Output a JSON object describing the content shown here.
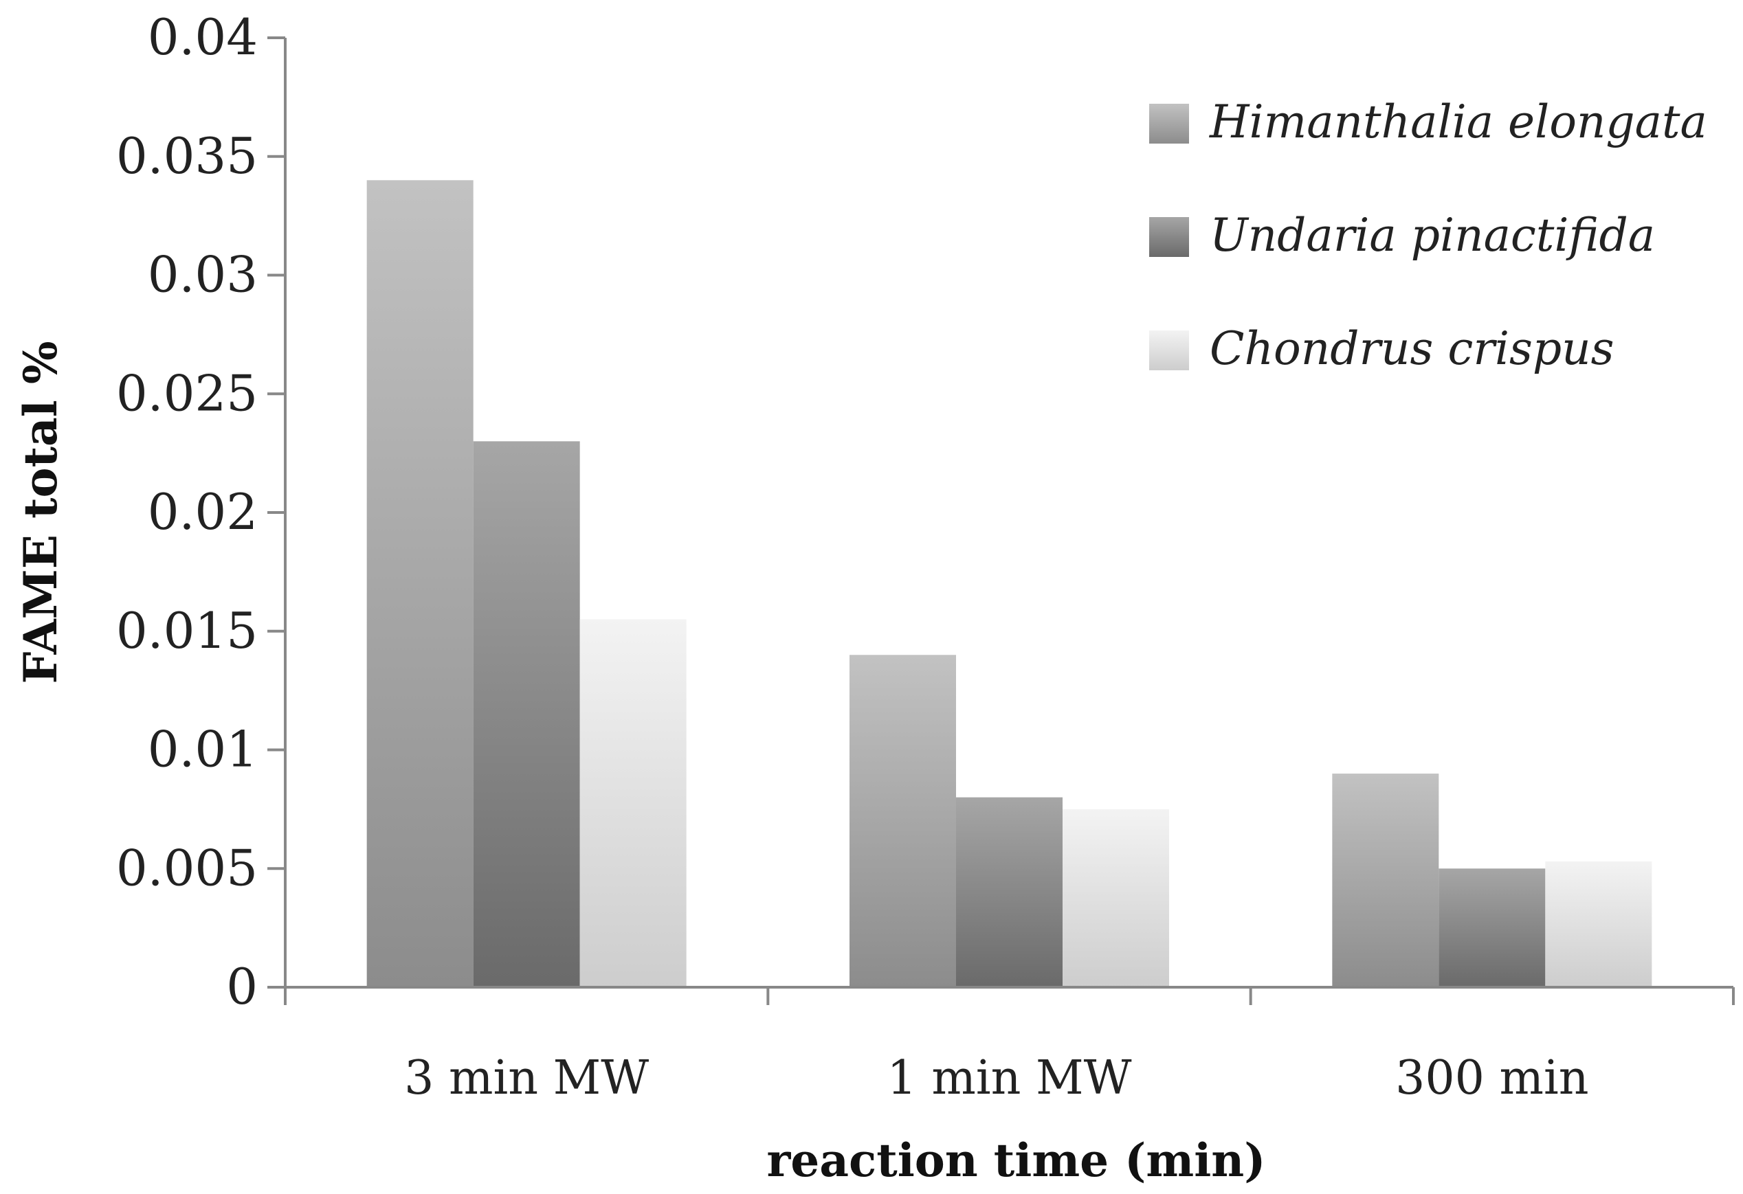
{
  "chart_data": {
    "type": "bar",
    "title": "",
    "xlabel": "reaction time (min)",
    "ylabel": "FAME total %",
    "ylim": [
      0,
      0.04
    ],
    "y_ticks": [
      "0",
      "0.005",
      "0.01",
      "0.015",
      "0.02",
      "0.025",
      "0.03",
      "0.035",
      "0.04"
    ],
    "y_tick_values": [
      0,
      0.005,
      0.01,
      0.015,
      0.02,
      0.025,
      0.03,
      0.035,
      0.04
    ],
    "grid": false,
    "legend_position": "top-right",
    "categories": [
      "3 min MW",
      "1 min MW",
      "300 min"
    ],
    "series": [
      {
        "name": "Himanthalia elongata",
        "values": [
          0.034,
          0.014,
          0.009
        ],
        "color_top": "#c2c2c2",
        "color_bottom": "#8c8c8c"
      },
      {
        "name": "Undaria pinactifida",
        "values": [
          0.023,
          0.008,
          0.005
        ],
        "color_top": "#a6a6a6",
        "color_bottom": "#6a6a6a"
      },
      {
        "name": "Chondrus crispus",
        "values": [
          0.0155,
          0.0075,
          0.0053
        ],
        "color_top": "#f3f3f3",
        "color_bottom": "#cdcdcd"
      }
    ]
  }
}
